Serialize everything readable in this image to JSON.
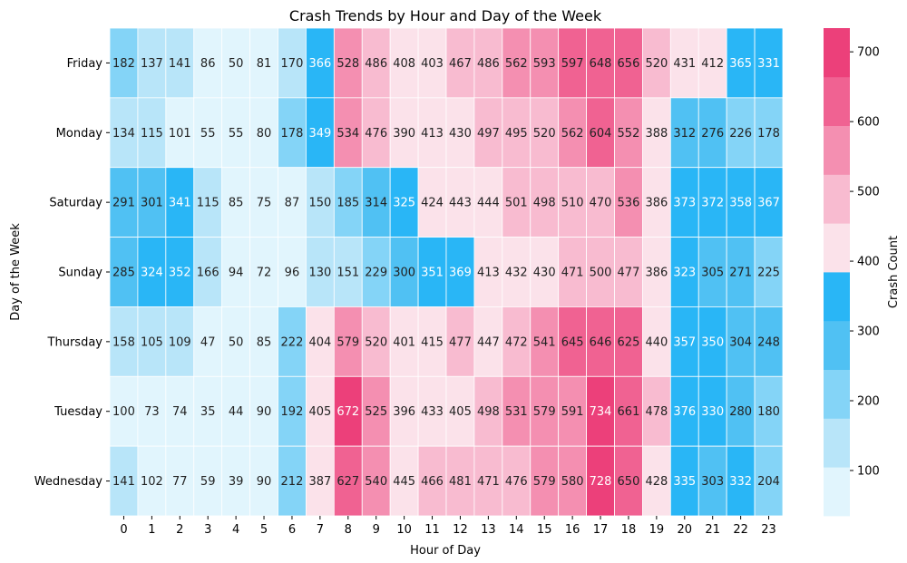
{
  "chart_data": {
    "type": "heatmap",
    "title": "Crash Trends by Hour and Day of the Week",
    "xlabel": "Hour of Day",
    "ylabel": "Day of the Week",
    "colorbar_label": "Crash Count",
    "x": [
      "0",
      "1",
      "2",
      "3",
      "4",
      "5",
      "6",
      "7",
      "8",
      "9",
      "10",
      "11",
      "12",
      "13",
      "14",
      "15",
      "16",
      "17",
      "18",
      "19",
      "20",
      "21",
      "22",
      "23"
    ],
    "y": [
      "Friday",
      "Monday",
      "Saturday",
      "Sunday",
      "Thursday",
      "Tuesday",
      "Wednesday"
    ],
    "values": [
      [
        182,
        137,
        141,
        86,
        50,
        81,
        170,
        366,
        528,
        486,
        408,
        403,
        467,
        486,
        562,
        593,
        597,
        648,
        656,
        520,
        431,
        412,
        365,
        331
      ],
      [
        134,
        115,
        101,
        55,
        55,
        80,
        178,
        349,
        534,
        476,
        390,
        413,
        430,
        497,
        495,
        520,
        562,
        604,
        552,
        388,
        312,
        276,
        226,
        178
      ],
      [
        291,
        301,
        341,
        115,
        85,
        75,
        87,
        150,
        185,
        314,
        325,
        424,
        443,
        444,
        501,
        498,
        510,
        470,
        536,
        386,
        373,
        372,
        358,
        367
      ],
      [
        285,
        324,
        352,
        166,
        94,
        72,
        96,
        130,
        151,
        229,
        300,
        351,
        369,
        413,
        432,
        430,
        471,
        500,
        477,
        386,
        323,
        305,
        271,
        225
      ],
      [
        158,
        105,
        109,
        47,
        50,
        85,
        222,
        404,
        579,
        520,
        401,
        415,
        477,
        447,
        472,
        541,
        645,
        646,
        625,
        440,
        357,
        350,
        304,
        248
      ],
      [
        100,
        73,
        74,
        35,
        44,
        90,
        192,
        405,
        672,
        525,
        396,
        433,
        405,
        498,
        531,
        579,
        591,
        734,
        661,
        478,
        376,
        330,
        280,
        180
      ],
      [
        141,
        102,
        77,
        59,
        39,
        90,
        212,
        387,
        627,
        540,
        445,
        466,
        481,
        471,
        476,
        579,
        580,
        728,
        650,
        428,
        335,
        303,
        332,
        204
      ]
    ],
    "color_range": [
      35,
      734
    ],
    "colorbar_ticks": [
      100,
      200,
      300,
      400,
      500,
      600,
      700
    ],
    "colors": [
      "#e1f5fd",
      "#b8e5f9",
      "#84d4f7",
      "#50c1f3",
      "#29b6f6",
      "#fbe2ea",
      "#f8bbd0",
      "#f48fb1",
      "#f06292",
      "#ec407a"
    ]
  }
}
